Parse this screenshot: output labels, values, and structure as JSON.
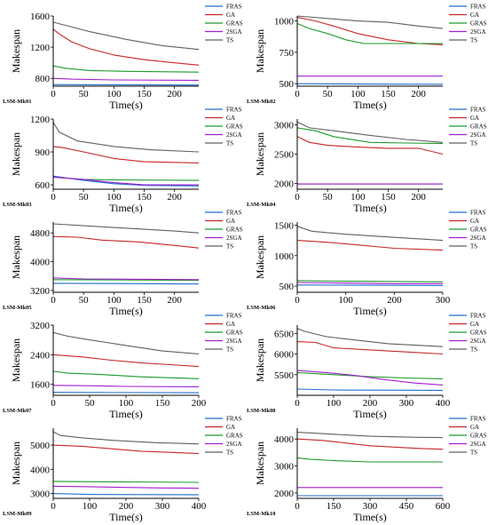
{
  "colors": {
    "FRAS": "#1f6fd0",
    "GA": "#c8262a",
    "GRAS": "#1a9a2a",
    "2SGA": "#a21fcf",
    "TS": "#606060"
  },
  "chart_data": [
    {
      "type": "line",
      "title": "LSM-Mk01",
      "xlabel": "Time(s)",
      "ylabel": "Makespan",
      "xlim": [
        0,
        240
      ],
      "ylim": [
        700,
        1600
      ],
      "xticks": [
        0,
        50,
        100,
        150,
        200
      ],
      "yticks": [
        800,
        1200,
        1600
      ],
      "legend": "top-right",
      "series": [
        {
          "name": "FRAS",
          "x": [
            0,
            240
          ],
          "y": [
            720,
            715
          ]
        },
        {
          "name": "GA",
          "x": [
            0,
            10,
            30,
            60,
            100,
            150,
            200,
            240
          ],
          "y": [
            1430,
            1370,
            1270,
            1180,
            1100,
            1040,
            1000,
            970
          ]
        },
        {
          "name": "GRAS",
          "x": [
            0,
            20,
            60,
            120,
            240
          ],
          "y": [
            960,
            930,
            900,
            890,
            880
          ]
        },
        {
          "name": "2SGA",
          "x": [
            0,
            30,
            100,
            240
          ],
          "y": [
            800,
            790,
            780,
            775
          ]
        },
        {
          "name": "TS",
          "x": [
            0,
            20,
            60,
            120,
            180,
            240
          ],
          "y": [
            1520,
            1480,
            1400,
            1300,
            1220,
            1170
          ]
        }
      ]
    },
    {
      "type": "line",
      "title": "LSM-Mk02",
      "xlabel": "Time(s)",
      "ylabel": "Makespan",
      "xlim": [
        0,
        240
      ],
      "ylim": [
        480,
        1040
      ],
      "xticks": [
        0,
        50,
        100,
        150,
        200
      ],
      "yticks": [
        500,
        750,
        1000
      ],
      "legend": "top-right",
      "series": [
        {
          "name": "FRAS",
          "x": [
            0,
            240
          ],
          "y": [
            500,
            495
          ]
        },
        {
          "name": "GA",
          "x": [
            0,
            30,
            60,
            100,
            150,
            200,
            240
          ],
          "y": [
            1030,
            1000,
            960,
            900,
            850,
            820,
            810
          ]
        },
        {
          "name": "GRAS",
          "x": [
            0,
            20,
            50,
            80,
            110,
            150,
            240
          ],
          "y": [
            980,
            940,
            900,
            850,
            820,
            820,
            820
          ]
        },
        {
          "name": "2SGA",
          "x": [
            0,
            240
          ],
          "y": [
            560,
            560
          ]
        },
        {
          "name": "TS",
          "x": [
            0,
            50,
            100,
            150,
            200,
            240
          ],
          "y": [
            1040,
            1020,
            1000,
            990,
            960,
            940
          ]
        }
      ]
    },
    {
      "type": "line",
      "title": "LSM-Mk03",
      "xlabel": "Time(s)",
      "ylabel": "Makespan",
      "xlim": [
        0,
        240
      ],
      "ylim": [
        560,
        1200
      ],
      "xticks": [
        0,
        50,
        100,
        150,
        200
      ],
      "yticks": [
        600,
        900,
        1200
      ],
      "legend": "top-right",
      "series": [
        {
          "name": "FRAS",
          "x": [
            0,
            50,
            100,
            150,
            240
          ],
          "y": [
            680,
            640,
            610,
            595,
            590
          ]
        },
        {
          "name": "GA",
          "x": [
            0,
            15,
            50,
            100,
            150,
            240
          ],
          "y": [
            950,
            940,
            900,
            840,
            810,
            800
          ]
        },
        {
          "name": "GRAS",
          "x": [
            0,
            50,
            100,
            240
          ],
          "y": [
            670,
            650,
            645,
            640
          ]
        },
        {
          "name": "2SGA",
          "x": [
            0,
            50,
            100,
            150,
            240
          ],
          "y": [
            670,
            650,
            620,
            600,
            600
          ]
        },
        {
          "name": "TS",
          "x": [
            0,
            10,
            40,
            100,
            160,
            240
          ],
          "y": [
            1170,
            1080,
            1000,
            950,
            920,
            900
          ]
        }
      ]
    },
    {
      "type": "line",
      "title": "LSM-Mk04",
      "xlabel": "Time(s)",
      "ylabel": "Makespan",
      "xlim": [
        0,
        240
      ],
      "ylim": [
        1900,
        3100
      ],
      "xticks": [
        0,
        50,
        100,
        150,
        200
      ],
      "yticks": [
        2000,
        2500,
        3000
      ],
      "legend": "top-right",
      "series": [
        {
          "name": "FRAS",
          "x": [
            0,
            240
          ],
          "y": [
            1990,
            1990
          ]
        },
        {
          "name": "GA",
          "x": [
            0,
            20,
            50,
            100,
            150,
            200,
            240
          ],
          "y": [
            2800,
            2700,
            2650,
            2620,
            2600,
            2600,
            2500
          ]
        },
        {
          "name": "GRAS",
          "x": [
            0,
            30,
            60,
            120,
            180,
            240
          ],
          "y": [
            2950,
            2900,
            2800,
            2700,
            2690,
            2680
          ]
        },
        {
          "name": "2SGA",
          "x": [
            0,
            240
          ],
          "y": [
            1990,
            1990
          ]
        },
        {
          "name": "TS",
          "x": [
            0,
            20,
            60,
            120,
            180,
            240
          ],
          "y": [
            3050,
            2950,
            2900,
            2820,
            2750,
            2700
          ]
        }
      ]
    },
    {
      "type": "line",
      "title": "LSM-Mk05",
      "xlabel": "Time(s)",
      "ylabel": "Makespan",
      "xlim": [
        0,
        240
      ],
      "ylim": [
        3150,
        5100
      ],
      "xticks": [
        0,
        50,
        100,
        150,
        200
      ],
      "yticks": [
        3200,
        4000,
        4800
      ],
      "legend": "top-right",
      "series": [
        {
          "name": "FRAS",
          "x": [
            0,
            240
          ],
          "y": [
            3400,
            3380
          ]
        },
        {
          "name": "GA",
          "x": [
            0,
            40,
            80,
            140,
            200,
            240
          ],
          "y": [
            4700,
            4680,
            4600,
            4550,
            4450,
            4380
          ]
        },
        {
          "name": "GRAS",
          "x": [
            0,
            240
          ],
          "y": [
            3500,
            3480
          ]
        },
        {
          "name": "2SGA",
          "x": [
            0,
            50,
            240
          ],
          "y": [
            3550,
            3520,
            3500
          ]
        },
        {
          "name": "TS",
          "x": [
            0,
            50,
            100,
            150,
            200,
            240
          ],
          "y": [
            5050,
            5000,
            4950,
            4900,
            4850,
            4800
          ]
        }
      ]
    },
    {
      "type": "line",
      "title": "LSM-Mk06",
      "xlabel": "Time(s)",
      "ylabel": "Makespan",
      "xlim": [
        0,
        300
      ],
      "ylim": [
        400,
        1550
      ],
      "xticks": [
        0,
        100,
        200,
        300
      ],
      "yticks": [
        500,
        1000,
        1500
      ],
      "legend": "top-right",
      "series": [
        {
          "name": "FRAS",
          "x": [
            0,
            300
          ],
          "y": [
            520,
            510
          ]
        },
        {
          "name": "GA",
          "x": [
            0,
            60,
            120,
            200,
            300
          ],
          "y": [
            1250,
            1220,
            1180,
            1120,
            1090
          ]
        },
        {
          "name": "GRAS",
          "x": [
            0,
            100,
            300
          ],
          "y": [
            590,
            580,
            570
          ]
        },
        {
          "name": "2SGA",
          "x": [
            0,
            100,
            200,
            300
          ],
          "y": [
            560,
            550,
            540,
            540
          ]
        },
        {
          "name": "TS",
          "x": [
            0,
            30,
            100,
            200,
            300
          ],
          "y": [
            1480,
            1400,
            1350,
            1300,
            1250
          ]
        }
      ]
    },
    {
      "type": "line",
      "title": "LSM-Mk07",
      "xlabel": "Time(s)",
      "ylabel": "Makespan",
      "xlim": [
        0,
        200
      ],
      "ylim": [
        1300,
        3200
      ],
      "xticks": [
        0,
        50,
        100,
        150,
        200
      ],
      "yticks": [
        1600,
        2400,
        3200
      ],
      "legend": "top-right",
      "series": [
        {
          "name": "FRAS",
          "x": [
            0,
            200
          ],
          "y": [
            1380,
            1370
          ]
        },
        {
          "name": "GA",
          "x": [
            0,
            40,
            80,
            120,
            160,
            200
          ],
          "y": [
            2400,
            2340,
            2250,
            2180,
            2130,
            2080
          ]
        },
        {
          "name": "GRAS",
          "x": [
            0,
            20,
            60,
            120,
            200
          ],
          "y": [
            1950,
            1900,
            1870,
            1800,
            1750
          ]
        },
        {
          "name": "2SGA",
          "x": [
            0,
            50,
            100,
            200
          ],
          "y": [
            1570,
            1560,
            1540,
            1530
          ]
        },
        {
          "name": "TS",
          "x": [
            0,
            20,
            50,
            100,
            150,
            200
          ],
          "y": [
            3000,
            2900,
            2800,
            2650,
            2500,
            2420
          ]
        }
      ]
    },
    {
      "type": "line",
      "title": "LSM-Mk08",
      "xlabel": "Time(s)",
      "ylabel": "Makespan",
      "xlim": [
        0,
        400
      ],
      "ylim": [
        5000,
        6700
      ],
      "xticks": [
        0,
        100,
        200,
        300,
        400
      ],
      "yticks": [
        5500,
        6000,
        6500
      ],
      "legend": "top-right",
      "series": [
        {
          "name": "FRAS",
          "x": [
            0,
            100,
            400
          ],
          "y": [
            5150,
            5130,
            5120
          ]
        },
        {
          "name": "GA",
          "x": [
            0,
            50,
            100,
            200,
            300,
            400
          ],
          "y": [
            6300,
            6280,
            6150,
            6100,
            6050,
            6000
          ]
        },
        {
          "name": "GRAS",
          "x": [
            0,
            100,
            200,
            300,
            400
          ],
          "y": [
            5550,
            5500,
            5450,
            5420,
            5400
          ]
        },
        {
          "name": "2SGA",
          "x": [
            0,
            80,
            160,
            240,
            320,
            400
          ],
          "y": [
            5600,
            5550,
            5480,
            5380,
            5300,
            5250
          ]
        },
        {
          "name": "TS",
          "x": [
            0,
            20,
            80,
            150,
            250,
            400
          ],
          "y": [
            6620,
            6550,
            6420,
            6350,
            6250,
            6180
          ]
        }
      ]
    },
    {
      "type": "line",
      "title": "LSM-Mk09",
      "xlabel": "Time(s)",
      "ylabel": "Makespan",
      "xlim": [
        0,
        400
      ],
      "ylim": [
        2800,
        5700
      ],
      "xticks": [
        0,
        100,
        200,
        300,
        400
      ],
      "yticks": [
        3000,
        4000,
        5000
      ],
      "legend": "top-right",
      "series": [
        {
          "name": "FRAS",
          "x": [
            0,
            100,
            400
          ],
          "y": [
            3000,
            2960,
            2950
          ]
        },
        {
          "name": "GA",
          "x": [
            0,
            80,
            160,
            240,
            320,
            400
          ],
          "y": [
            5000,
            4950,
            4850,
            4750,
            4700,
            4650
          ]
        },
        {
          "name": "GRAS",
          "x": [
            0,
            200,
            400
          ],
          "y": [
            3500,
            3480,
            3460
          ]
        },
        {
          "name": "2SGA",
          "x": [
            0,
            100,
            200,
            300,
            400
          ],
          "y": [
            3300,
            3280,
            3250,
            3230,
            3220
          ]
        },
        {
          "name": "TS",
          "x": [
            0,
            20,
            80,
            160,
            280,
            400
          ],
          "y": [
            5550,
            5400,
            5300,
            5200,
            5100,
            5050
          ]
        }
      ]
    },
    {
      "type": "line",
      "title": "LSM-Mk10",
      "xlabel": "Time(s)",
      "ylabel": "Makespan",
      "xlim": [
        0,
        600
      ],
      "ylim": [
        1800,
        4400
      ],
      "xticks": [
        0,
        150,
        300,
        450,
        600
      ],
      "yticks": [
        2000,
        3000,
        4000
      ],
      "legend": "top-right",
      "series": [
        {
          "name": "FRAS",
          "x": [
            0,
            600
          ],
          "y": [
            1900,
            1900
          ]
        },
        {
          "name": "GA",
          "x": [
            0,
            100,
            200,
            300,
            400,
            500,
            600
          ],
          "y": [
            4000,
            3950,
            3850,
            3750,
            3700,
            3650,
            3620
          ]
        },
        {
          "name": "GRAS",
          "x": [
            0,
            50,
            150,
            300,
            600
          ],
          "y": [
            3300,
            3250,
            3200,
            3150,
            3150
          ]
        },
        {
          "name": "2SGA",
          "x": [
            0,
            600
          ],
          "y": [
            2200,
            2200
          ]
        },
        {
          "name": "TS",
          "x": [
            0,
            100,
            200,
            300,
            400,
            500,
            600
          ],
          "y": [
            4250,
            4200,
            4150,
            4100,
            4080,
            4060,
            4050
          ]
        }
      ]
    }
  ]
}
